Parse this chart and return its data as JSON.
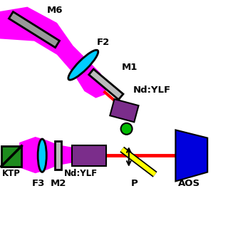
{
  "bg": "#ffffff",
  "magenta": "#FF00FF",
  "red": "#FF0000",
  "yellow": "#FFFF00",
  "cyan": "#00CCFF",
  "purple": "#7B2D8B",
  "green_circle": "#00BB00",
  "dark_green": "#1E8B1E",
  "blue": "#0000DD",
  "gray_mirror": "#999999",
  "gray_light": "#bbbbbb",
  "black": "#000000",
  "xlim": [
    0,
    10
  ],
  "ylim": [
    0,
    10
  ]
}
